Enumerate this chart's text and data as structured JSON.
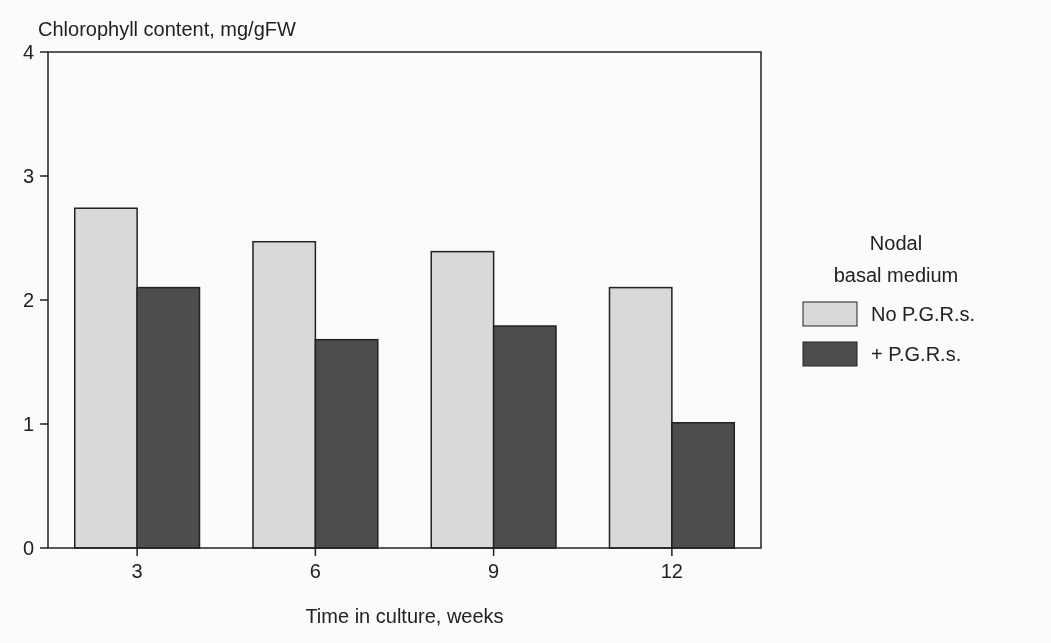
{
  "chart_data": {
    "type": "bar",
    "ylabel": "Chlorophyll content, mg/gFW",
    "xlabel": "Time in culture, weeks",
    "legend_title": "Nodal\nbasal medium",
    "categories": [
      "3",
      "6",
      "9",
      "12"
    ],
    "series": [
      {
        "name": "No P.G.R.s.",
        "color": "#d9d9d9",
        "values": [
          2.74,
          2.47,
          2.39,
          2.1
        ]
      },
      {
        "name": "+ P.G.R.s.",
        "color": "#4d4d4d",
        "values": [
          2.1,
          1.68,
          1.79,
          1.01
        ]
      }
    ],
    "ylim": [
      0,
      4
    ],
    "yticks": [
      0,
      1,
      2,
      3,
      4
    ],
    "grid": false,
    "legend": "right"
  }
}
